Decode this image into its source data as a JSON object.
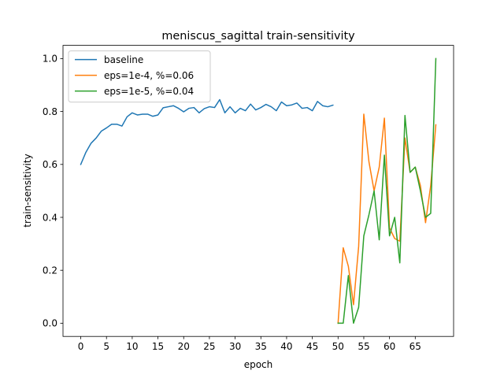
{
  "chart_data": {
    "type": "line",
    "title": "meniscus_sagittal train-sensitivity",
    "xlabel": "epoch",
    "ylabel": "train-sensitivity",
    "xlim": [
      -3.45,
      72.45
    ],
    "ylim": [
      -0.05,
      1.05
    ],
    "xticks": [
      0,
      5,
      10,
      15,
      20,
      25,
      30,
      35,
      40,
      45,
      50,
      55,
      60,
      65
    ],
    "yticks": [
      0.0,
      0.2,
      0.4,
      0.6,
      0.8,
      1.0
    ],
    "ytick_labels": [
      "0.0",
      "0.2",
      "0.4",
      "0.6",
      "0.8",
      "1.0"
    ],
    "grid": false,
    "legend_position": "upper-left",
    "series": [
      {
        "name": "baseline",
        "color": "#1f77b4",
        "x": [
          0,
          1,
          2,
          3,
          4,
          5,
          6,
          7,
          8,
          9,
          10,
          11,
          12,
          13,
          14,
          15,
          16,
          17,
          18,
          19,
          20,
          21,
          22,
          23,
          24,
          25,
          26,
          27,
          28,
          29,
          30,
          31,
          32,
          33,
          34,
          35,
          36,
          37,
          38,
          39,
          40,
          41,
          42,
          43,
          44,
          45,
          46,
          47,
          48,
          49
        ],
        "y": [
          0.6,
          0.646,
          0.68,
          0.7,
          0.726,
          0.738,
          0.752,
          0.752,
          0.745,
          0.78,
          0.795,
          0.787,
          0.79,
          0.79,
          0.782,
          0.787,
          0.814,
          0.818,
          0.822,
          0.812,
          0.799,
          0.812,
          0.815,
          0.795,
          0.811,
          0.818,
          0.815,
          0.845,
          0.795,
          0.818,
          0.795,
          0.812,
          0.803,
          0.828,
          0.806,
          0.815,
          0.827,
          0.818,
          0.803,
          0.836,
          0.822,
          0.825,
          0.832,
          0.812,
          0.815,
          0.803,
          0.838,
          0.822,
          0.818,
          0.824
        ]
      },
      {
        "name": "eps=1e-4, %=0.06",
        "color": "#ff7f0e",
        "x": [
          50,
          51,
          52,
          53,
          54,
          55,
          56,
          57,
          58,
          59,
          60,
          61,
          62,
          63,
          64,
          65,
          66,
          67,
          68,
          69
        ],
        "y": [
          0.0,
          0.285,
          0.215,
          0.07,
          0.29,
          0.79,
          0.61,
          0.5,
          0.59,
          0.775,
          0.36,
          0.32,
          0.31,
          0.7,
          0.57,
          0.59,
          0.52,
          0.38,
          0.52,
          0.75
        ]
      },
      {
        "name": "eps=1e-5, %=0.04",
        "color": "#2ca02c",
        "x": [
          50,
          51,
          52,
          53,
          54,
          55,
          56,
          57,
          58,
          59,
          60,
          61,
          62,
          63,
          64,
          65,
          66,
          67,
          68,
          69
        ],
        "y": [
          0.0,
          0.0,
          0.18,
          0.0,
          0.06,
          0.33,
          0.41,
          0.5,
          0.315,
          0.635,
          0.33,
          0.4,
          0.228,
          0.785,
          0.57,
          0.59,
          0.5,
          0.4,
          0.415,
          1.0
        ]
      }
    ]
  }
}
